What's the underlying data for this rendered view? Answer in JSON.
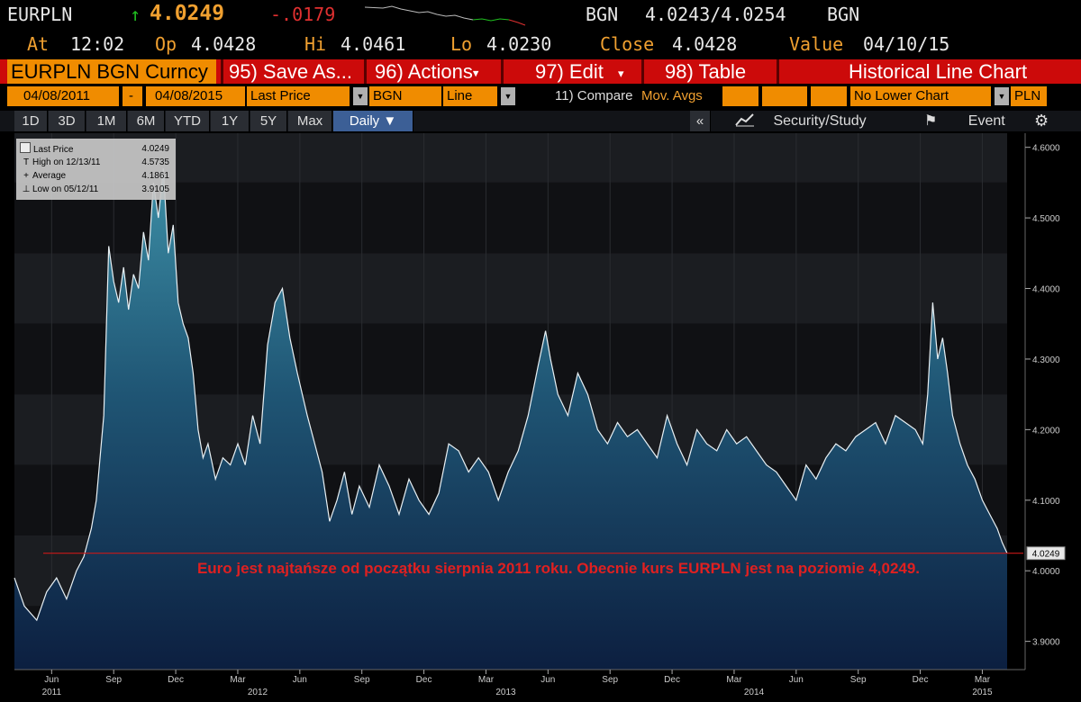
{
  "quote": {
    "ticker": "EURPLN",
    "up_arrow": "↑",
    "last": "4.0249",
    "change": "-.0179",
    "source": "BGN",
    "bid_ask": "4.0243/4.0254",
    "source2": "BGN",
    "at_label": "At",
    "at": "12:02",
    "op_label": "Op",
    "op": "4.0428",
    "hi_label": "Hi",
    "hi": "4.0461",
    "lo_label": "Lo",
    "lo": "4.0230",
    "close_label": "Close",
    "close": "4.0428",
    "value_label": "Value",
    "value": "04/10/15"
  },
  "function_bar": {
    "security": "EURPLN BGN Curncy",
    "save": "95) Save As...",
    "actions": "96) Actions",
    "edit": "97) Edit",
    "table": "98) Table",
    "view": "Historical Line Chart",
    "bg_color": "#cc0a0a",
    "accent": "#f08c00"
  },
  "params": {
    "start_date": "04/08/2011",
    "dash": "-",
    "end_date": "04/08/2015",
    "field": "Last Price",
    "source": "BGN",
    "style": "Line",
    "compare": "11) Compare",
    "mov_avgs": "Mov. Avgs",
    "lower_chart": "No Lower Chart",
    "currency": "PLN"
  },
  "ranges": {
    "buttons": [
      "1D",
      "3D",
      "1M",
      "6M",
      "YTD",
      "1Y",
      "5Y",
      "Max"
    ],
    "periodicity": "Daily",
    "collapse": "«",
    "security_study": "Security/Study",
    "event": "Event"
  },
  "legend": {
    "items": [
      {
        "glyph": "",
        "label": "Last Price",
        "value": "4.0249"
      },
      {
        "glyph": "T",
        "label": "High on 12/13/11",
        "value": "4.5735"
      },
      {
        "glyph": "+",
        "label": "Average",
        "value": "4.1861"
      },
      {
        "glyph": "⊥",
        "label": "Low on 05/12/11",
        "value": "3.9105"
      }
    ]
  },
  "annotation": "Euro jest najtańsze od początku sierpnia 2011 roku. Obecnie kurs EURPLN jest na poziomie 4,0249.",
  "chart_data": {
    "type": "area",
    "title": "",
    "xlabel": "",
    "ylabel": "",
    "ylim": [
      3.86,
      4.62
    ],
    "yticks": [
      "3.9000",
      "4.0000",
      "4.1000",
      "4.2000",
      "4.3000",
      "4.4000",
      "4.5000",
      "4.6000"
    ],
    "last_label": "4.0249",
    "reference_line": 4.0249,
    "month_ticks": [
      {
        "t": 2011.42,
        "label": "Jun"
      },
      {
        "t": 2011.67,
        "label": "Sep"
      },
      {
        "t": 2011.92,
        "label": "Dec"
      },
      {
        "t": 2012.17,
        "label": "Mar"
      },
      {
        "t": 2012.42,
        "label": "Jun"
      },
      {
        "t": 2012.67,
        "label": "Sep"
      },
      {
        "t": 2012.92,
        "label": "Dec"
      },
      {
        "t": 2013.17,
        "label": "Mar"
      },
      {
        "t": 2013.42,
        "label": "Jun"
      },
      {
        "t": 2013.67,
        "label": "Sep"
      },
      {
        "t": 2013.92,
        "label": "Dec"
      },
      {
        "t": 2014.17,
        "label": "Mar"
      },
      {
        "t": 2014.42,
        "label": "Jun"
      },
      {
        "t": 2014.67,
        "label": "Sep"
      },
      {
        "t": 2014.92,
        "label": "Dec"
      },
      {
        "t": 2015.17,
        "label": "Mar"
      }
    ],
    "year_ticks": [
      {
        "t": 2011.42,
        "label": "2011"
      },
      {
        "t": 2012.25,
        "label": "2012"
      },
      {
        "t": 2013.25,
        "label": "2013"
      },
      {
        "t": 2014.25,
        "label": "2014"
      },
      {
        "t": 2015.17,
        "label": "2015"
      }
    ],
    "x_range": [
      2011.27,
      2015.27
    ],
    "series": [
      {
        "x": [
          2011.27,
          2011.31,
          2011.36,
          2011.4,
          2011.44,
          2011.48,
          2011.52,
          2011.55,
          2011.58,
          2011.6,
          2011.63,
          2011.65,
          2011.67,
          2011.69,
          2011.71,
          2011.73,
          2011.75,
          2011.77,
          2011.79,
          2011.81,
          2011.83,
          2011.85,
          2011.87,
          2011.89,
          2011.91,
          2011.93,
          2011.95,
          2011.97,
          2011.99,
          2012.01,
          2012.03,
          2012.05,
          2012.08,
          2012.11,
          2012.14,
          2012.17,
          2012.2,
          2012.23,
          2012.26,
          2012.29,
          2012.32,
          2012.35,
          2012.38,
          2012.41,
          2012.43,
          2012.45,
          2012.48,
          2012.51,
          2012.54,
          2012.57,
          2012.6,
          2012.63,
          2012.66,
          2012.7,
          2012.74,
          2012.78,
          2012.82,
          2012.86,
          2012.9,
          2012.94,
          2012.98,
          2013.02,
          2013.06,
          2013.1,
          2013.14,
          2013.18,
          2013.22,
          2013.26,
          2013.3,
          2013.34,
          2013.38,
          2013.41,
          2013.43,
          2013.46,
          2013.5,
          2013.54,
          2013.58,
          2013.62,
          2013.66,
          2013.7,
          2013.74,
          2013.78,
          2013.82,
          2013.86,
          2013.9,
          2013.94,
          2013.98,
          2014.02,
          2014.06,
          2014.1,
          2014.14,
          2014.18,
          2014.22,
          2014.26,
          2014.3,
          2014.34,
          2014.38,
          2014.42,
          2014.46,
          2014.5,
          2014.54,
          2014.58,
          2014.62,
          2014.66,
          2014.7,
          2014.74,
          2014.78,
          2014.82,
          2014.86,
          2014.9,
          2014.93,
          2014.95,
          2014.97,
          2014.99,
          2015.01,
          2015.03,
          2015.05,
          2015.08,
          2015.11,
          2015.14,
          2015.17,
          2015.2,
          2015.23,
          2015.25,
          2015.27
        ],
        "y": [
          3.99,
          3.95,
          3.93,
          3.97,
          3.99,
          3.96,
          4.0,
          4.02,
          4.06,
          4.1,
          4.22,
          4.46,
          4.41,
          4.38,
          4.43,
          4.37,
          4.42,
          4.4,
          4.48,
          4.44,
          4.55,
          4.5,
          4.57,
          4.45,
          4.49,
          4.38,
          4.35,
          4.33,
          4.28,
          4.2,
          4.16,
          4.18,
          4.13,
          4.16,
          4.15,
          4.18,
          4.15,
          4.22,
          4.18,
          4.32,
          4.38,
          4.4,
          4.33,
          4.28,
          4.25,
          4.22,
          4.18,
          4.14,
          4.07,
          4.1,
          4.14,
          4.08,
          4.12,
          4.09,
          4.15,
          4.12,
          4.08,
          4.13,
          4.1,
          4.08,
          4.11,
          4.18,
          4.17,
          4.14,
          4.16,
          4.14,
          4.1,
          4.14,
          4.17,
          4.22,
          4.29,
          4.34,
          4.3,
          4.25,
          4.22,
          4.28,
          4.25,
          4.2,
          4.18,
          4.21,
          4.19,
          4.2,
          4.18,
          4.16,
          4.22,
          4.18,
          4.15,
          4.2,
          4.18,
          4.17,
          4.2,
          4.18,
          4.19,
          4.17,
          4.15,
          4.14,
          4.12,
          4.1,
          4.15,
          4.13,
          4.16,
          4.18,
          4.17,
          4.19,
          4.2,
          4.21,
          4.18,
          4.22,
          4.21,
          4.2,
          4.18,
          4.25,
          4.38,
          4.3,
          4.33,
          4.28,
          4.22,
          4.18,
          4.15,
          4.13,
          4.1,
          4.08,
          4.06,
          4.04,
          4.0249
        ]
      }
    ]
  }
}
